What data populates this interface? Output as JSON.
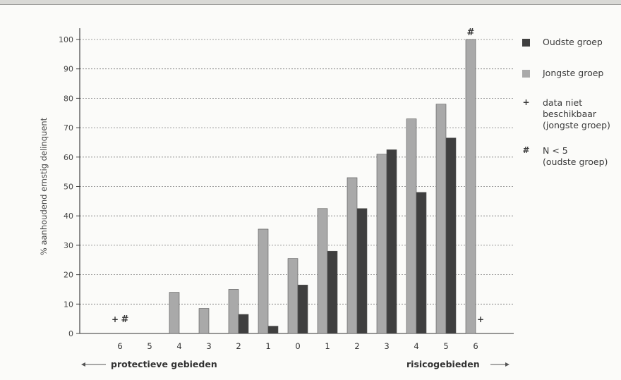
{
  "chart_data": {
    "type": "bar",
    "ylabel": "% aanhoudend ernstig delinquent",
    "ylim": [
      0,
      100
    ],
    "yticks": [
      0,
      10,
      20,
      30,
      40,
      50,
      60,
      70,
      80,
      90,
      100
    ],
    "grid": true,
    "categories": [
      "6",
      "5",
      "4",
      "3",
      "2",
      "1",
      "0",
      "1",
      "2",
      "3",
      "4",
      "5",
      "6"
    ],
    "series": [
      {
        "name": "Jongste groep",
        "color": "#a9a9a9",
        "values": [
          null,
          0,
          14,
          8.5,
          15,
          35.5,
          25.5,
          42.5,
          53,
          61,
          73,
          78,
          100
        ]
      },
      {
        "name": "Oudste groep",
        "color": "#3f3f3f",
        "values": [
          null,
          0,
          0,
          0,
          6.5,
          2.5,
          16.5,
          28,
          42.5,
          62.5,
          48,
          66.5,
          null
        ]
      }
    ],
    "bar_markers": [
      {
        "category_index": 0,
        "series": "Jongste groep",
        "symbol": "+"
      },
      {
        "category_index": 0,
        "series": "Oudste groep",
        "symbol": "#"
      },
      {
        "category_index": 12,
        "series": "Oudste groep",
        "symbol": "+"
      },
      {
        "category_index": 12,
        "series": "Jongste groep",
        "symbol": "#"
      }
    ],
    "axis_annotations": {
      "left": "protectieve gebieden",
      "right": "risicogebieden"
    },
    "legend_position": "right",
    "legend": [
      {
        "marker": "swatch",
        "color": "#3f3f3f",
        "label": "Oudste groep"
      },
      {
        "marker": "swatch",
        "color": "#a9a9a9",
        "label": "Jongste groep"
      },
      {
        "marker": "symbol",
        "symbol": "+",
        "label": "data niet\nbeschikbaar\n(jongste groep)"
      },
      {
        "marker": "symbol",
        "symbol": "#",
        "label": "N < 5\n(oudste groep)"
      }
    ]
  }
}
